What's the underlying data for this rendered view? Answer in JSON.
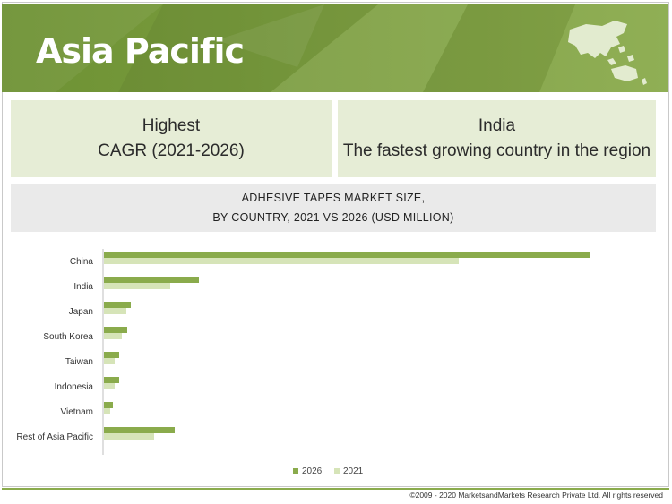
{
  "banner": {
    "title": "Asia Pacific",
    "map_icon": "asia-pacific-map-icon"
  },
  "highlights": {
    "left": {
      "line1": "Highest",
      "line2": "CAGR (2021-2026)"
    },
    "right": {
      "line1": "India",
      "line2": "The fastest growing country in the region"
    }
  },
  "chart_header": {
    "line1": "ADHESIVE TAPES MARKET SIZE,",
    "line2": "BY COUNTRY, 2021 VS 2026 (USD MILLION)"
  },
  "colors": {
    "series_2026": "#8aab4c",
    "series_2021": "#d6e4b8",
    "banner": "#7b9d3f"
  },
  "chart_data": {
    "type": "bar",
    "orientation": "horizontal",
    "categories": [
      "China",
      "India",
      "Japan",
      "South Korea",
      "Taiwan",
      "Indonesia",
      "Vietnam",
      "Rest of Asia Pacific"
    ],
    "series": [
      {
        "name": "2026",
        "values": [
          5420,
          1060,
          300,
          260,
          170,
          170,
          100,
          790
        ]
      },
      {
        "name": "2021",
        "values": [
          3960,
          740,
          250,
          200,
          120,
          120,
          70,
          560
        ]
      }
    ],
    "xlim": [
      0,
      6000
    ],
    "title": "",
    "xlabel": "",
    "ylabel": "",
    "legend": "bottom-center",
    "grid": false
  },
  "footer": {
    "copyright": "©2009 - 2020 MarketsandMarkets Research Private Ltd. All rights reserved"
  }
}
